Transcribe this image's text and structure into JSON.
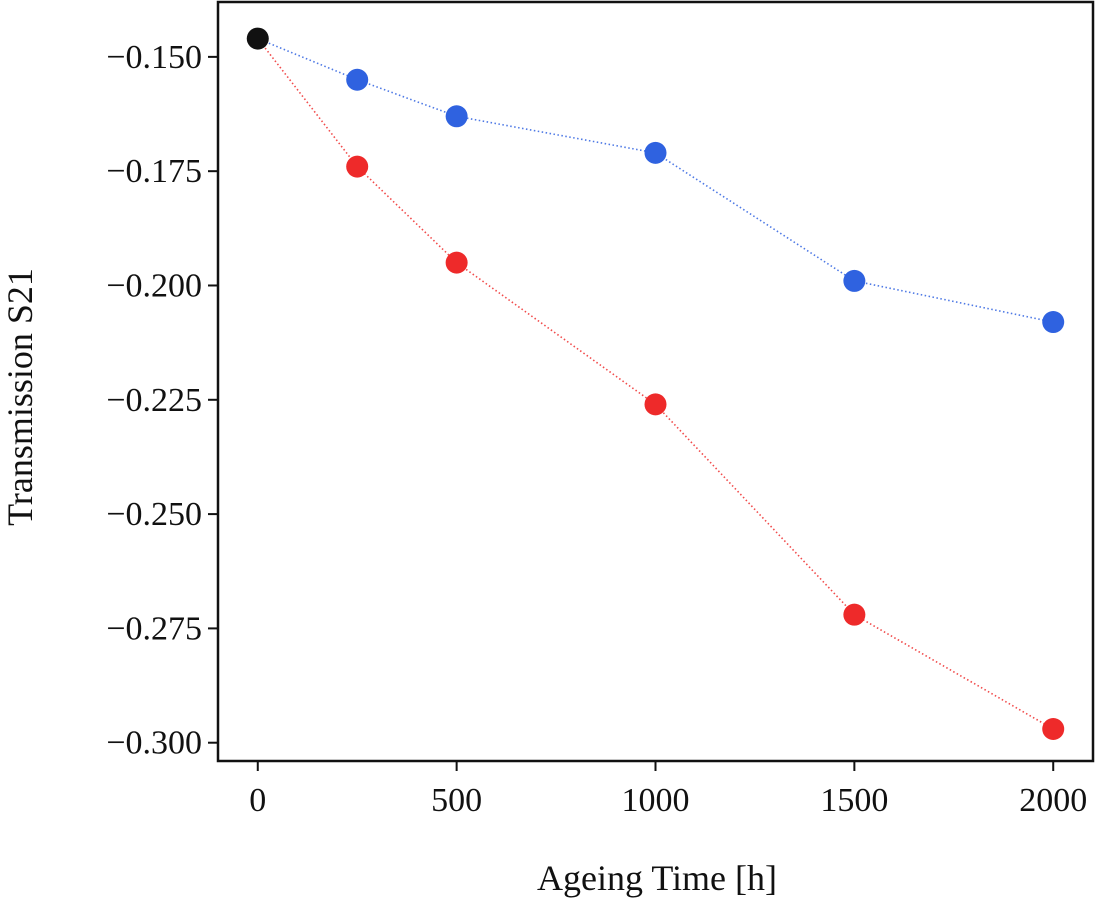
{
  "chart_data": {
    "type": "line",
    "title": "",
    "xlabel": "Ageing Time [h]",
    "ylabel": "Transmission S21",
    "xlim": [
      -100,
      2100
    ],
    "ylim": [
      -0.304,
      -0.138
    ],
    "xticks": [
      0,
      500,
      1000,
      1500,
      2000
    ],
    "xtick_labels": [
      "0",
      "500",
      "1000",
      "1500",
      "2000"
    ],
    "yticks": [
      -0.15,
      -0.175,
      -0.2,
      -0.225,
      -0.25,
      -0.275,
      -0.3
    ],
    "ytick_labels": [
      "−0.150",
      "−0.175",
      "−0.200",
      "−0.225",
      "−0.250",
      "−0.275",
      "−0.300"
    ],
    "grid": false,
    "series": [
      {
        "color": "#2f62e0",
        "line_style": "dotted",
        "x": [
          0,
          250,
          500,
          1000,
          1500,
          2000
        ],
        "y": [
          -0.146,
          -0.155,
          -0.163,
          -0.171,
          -0.199,
          -0.208
        ]
      },
      {
        "color": "#ee2a2a",
        "line_style": "dotted",
        "x": [
          0,
          250,
          500,
          1000,
          1500,
          2000
        ],
        "y": [
          -0.146,
          -0.174,
          -0.195,
          -0.226,
          -0.272,
          -0.297
        ]
      }
    ],
    "start_point": {
      "color": "#111111",
      "x": 0,
      "y": -0.146
    }
  }
}
